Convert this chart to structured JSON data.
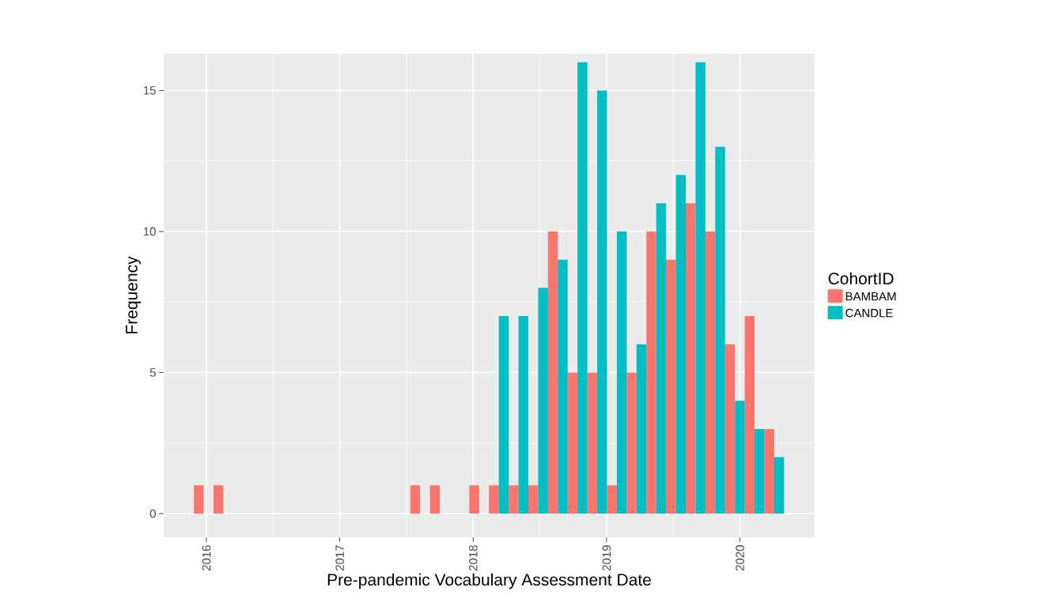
{
  "chart_data": {
    "type": "histogram",
    "xlabel": "Pre-pandemic Vocabulary Assessment Date",
    "ylabel": "Frequency",
    "legend_title": "CohortID",
    "bins": [
      2015.906,
      2016.0535,
      2016.201,
      2016.3485,
      2016.496,
      2016.6435,
      2016.791,
      2016.9385,
      2017.086,
      2017.2335,
      2017.381,
      2017.5285,
      2017.676,
      2017.8235,
      2017.971,
      2018.1185,
      2018.266,
      2018.4135,
      2018.561,
      2018.7085,
      2018.856,
      2019.0035,
      2019.151,
      2019.2985,
      2019.446,
      2019.5935,
      2019.741,
      2019.8885,
      2020.036,
      2020.1835,
      2020.331
    ],
    "series": [
      {
        "name": "BAMBAM",
        "color": "#f8766d",
        "values": [
          1,
          1,
          0,
          0,
          0,
          0,
          0,
          0,
          0,
          0,
          0,
          1,
          1,
          0,
          1,
          1,
          1,
          1,
          10,
          5,
          5,
          1,
          5,
          10,
          9,
          11,
          10,
          6,
          7,
          3
        ]
      },
      {
        "name": "CANDLE",
        "color": "#00bfc4",
        "values": [
          0,
          0,
          0,
          0,
          0,
          0,
          0,
          0,
          0,
          0,
          0,
          0,
          0,
          0,
          0,
          7,
          7,
          8,
          9,
          16,
          15,
          10,
          6,
          11,
          12,
          16,
          13,
          4,
          3,
          2
        ]
      }
    ],
    "xlim": [
      2015.68,
      2020.56
    ],
    "ylim": [
      -0.84,
      16.3
    ],
    "xticks": [
      2016,
      2017,
      2018,
      2019,
      2020
    ],
    "yticks": [
      0,
      5,
      10,
      15
    ],
    "grid": true,
    "legend": "right"
  }
}
